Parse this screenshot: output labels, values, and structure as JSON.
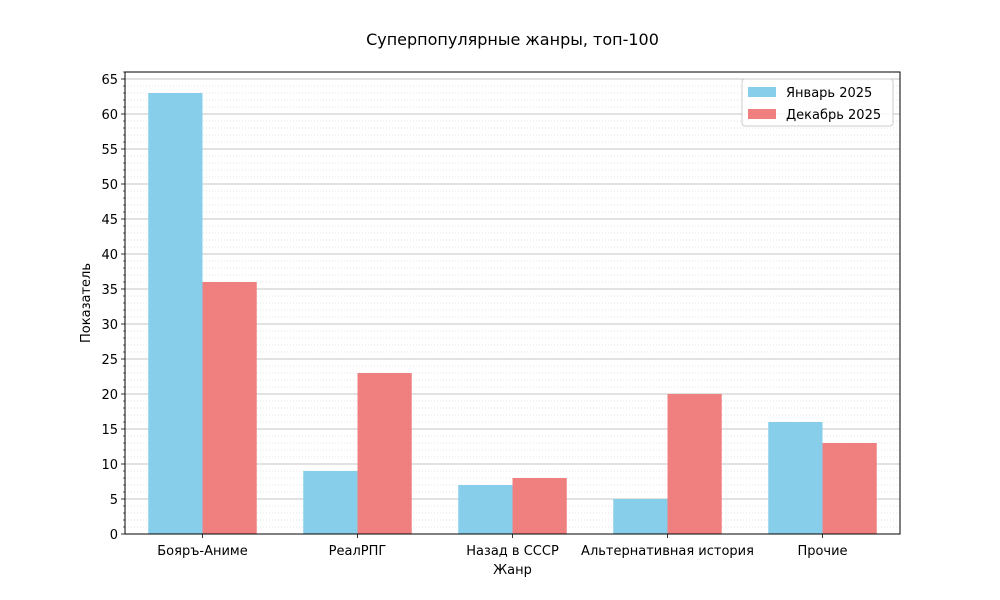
{
  "chart_data": {
    "type": "bar",
    "title": "Суперпопулярные жанры, топ-100",
    "xlabel": "Жанр",
    "ylabel": "Показатель",
    "categories": [
      "Бояръ-Аниме",
      "РеалРПГ",
      "Назад в СССР",
      "Альтернативная история",
      "Прочие"
    ],
    "series": [
      {
        "name": "Январь 2025",
        "color": "#87CEEB",
        "values": [
          63,
          9,
          7,
          5,
          16
        ]
      },
      {
        "name": "Декабрь 2025",
        "color": "#F08080",
        "values": [
          36,
          23,
          8,
          20,
          13
        ]
      }
    ],
    "ylim": [
      0,
      66
    ],
    "yticks": [
      0,
      5,
      10,
      15,
      20,
      25,
      30,
      35,
      40,
      45,
      50,
      55,
      60,
      65
    ],
    "minor_tick_step": 1,
    "grid": true,
    "legend_position": "top-right"
  }
}
